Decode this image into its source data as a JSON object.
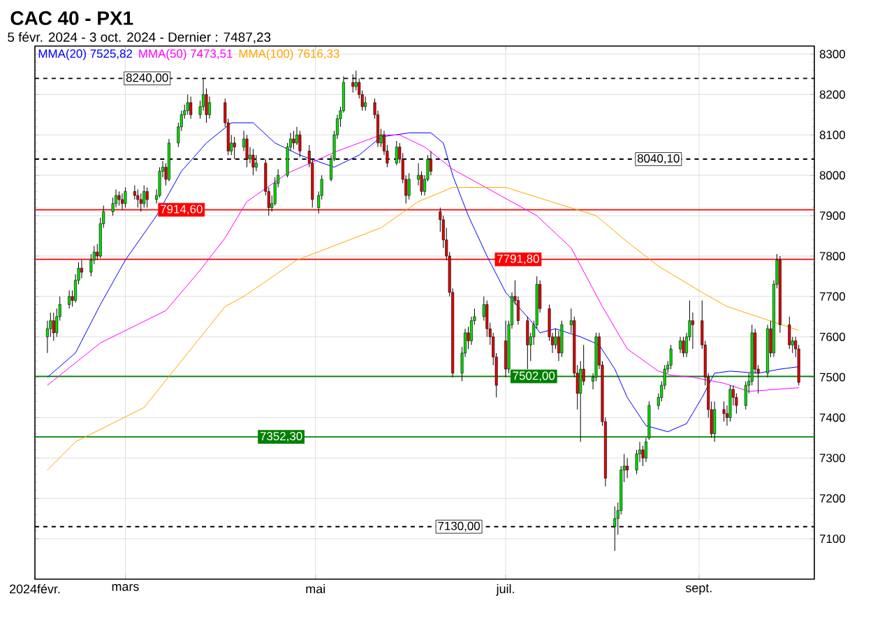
{
  "chart_data": {
    "type": "candlestick",
    "title": "CAC 40 - PX1",
    "subtitle": "5 févr. 2024 - 3 oct. 2024 - Dernier : 7487,23",
    "x": [
      "2024-02-05",
      "2024-02-06",
      "2024-02-07",
      "2024-02-08",
      "2024-02-09",
      "2024-02-12",
      "2024-02-13",
      "2024-02-14",
      "2024-02-15",
      "2024-02-16",
      "2024-02-19",
      "2024-02-20",
      "2024-02-21",
      "2024-02-22",
      "2024-02-23",
      "2024-02-26",
      "2024-02-27",
      "2024-02-28",
      "2024-02-29",
      "2024-03-01",
      "2024-03-04",
      "2024-03-05",
      "2024-03-06",
      "2024-03-07",
      "2024-03-08",
      "2024-03-11",
      "2024-03-12",
      "2024-03-13",
      "2024-03-14",
      "2024-03-15",
      "2024-03-18",
      "2024-03-19",
      "2024-03-20",
      "2024-03-21",
      "2024-03-22",
      "2024-03-25",
      "2024-03-26",
      "2024-03-27",
      "2024-03-28",
      "2024-04-02",
      "2024-04-03",
      "2024-04-04",
      "2024-04-05",
      "2024-04-08",
      "2024-04-09",
      "2024-04-10",
      "2024-04-11",
      "2024-04-12",
      "2024-04-15",
      "2024-04-16",
      "2024-04-17",
      "2024-04-18",
      "2024-04-19",
      "2024-04-22",
      "2024-04-23",
      "2024-04-24",
      "2024-04-25",
      "2024-04-26",
      "2024-04-29",
      "2024-04-30",
      "2024-05-02",
      "2024-05-03",
      "2024-05-06",
      "2024-05-07",
      "2024-05-08",
      "2024-05-09",
      "2024-05-10",
      "2024-05-13",
      "2024-05-14",
      "2024-05-15",
      "2024-05-16",
      "2024-05-17",
      "2024-05-20",
      "2024-05-21",
      "2024-05-22",
      "2024-05-23",
      "2024-05-24",
      "2024-05-27",
      "2024-05-28",
      "2024-05-29",
      "2024-05-30",
      "2024-05-31",
      "2024-06-03",
      "2024-06-04",
      "2024-06-05",
      "2024-06-06",
      "2024-06-07",
      "2024-06-10",
      "2024-06-11",
      "2024-06-12",
      "2024-06-13",
      "2024-06-14",
      "2024-06-17",
      "2024-06-18",
      "2024-06-19",
      "2024-06-20",
      "2024-06-21",
      "2024-06-24",
      "2024-06-25",
      "2024-06-26",
      "2024-06-27",
      "2024-06-28",
      "2024-07-01",
      "2024-07-02",
      "2024-07-03",
      "2024-07-04",
      "2024-07-05",
      "2024-07-08",
      "2024-07-09",
      "2024-07-10",
      "2024-07-11",
      "2024-07-12",
      "2024-07-15",
      "2024-07-16",
      "2024-07-17",
      "2024-07-18",
      "2024-07-19",
      "2024-07-22",
      "2024-07-23",
      "2024-07-24",
      "2024-07-25",
      "2024-07-26",
      "2024-07-29",
      "2024-07-30",
      "2024-07-31",
      "2024-08-01",
      "2024-08-02",
      "2024-08-05",
      "2024-08-06",
      "2024-08-07",
      "2024-08-08",
      "2024-08-09",
      "2024-08-12",
      "2024-08-13",
      "2024-08-14",
      "2024-08-15",
      "2024-08-16",
      "2024-08-19",
      "2024-08-20",
      "2024-08-21",
      "2024-08-22",
      "2024-08-23",
      "2024-08-26",
      "2024-08-27",
      "2024-08-28",
      "2024-08-29",
      "2024-08-30",
      "2024-09-02",
      "2024-09-03",
      "2024-09-04",
      "2024-09-05",
      "2024-09-06",
      "2024-09-09",
      "2024-09-10",
      "2024-09-11",
      "2024-09-12",
      "2024-09-13",
      "2024-09-16",
      "2024-09-17",
      "2024-09-18",
      "2024-09-19",
      "2024-09-20",
      "2024-09-23",
      "2024-09-24",
      "2024-09-25",
      "2024-09-26",
      "2024-09-27",
      "2024-09-30",
      "2024-10-01",
      "2024-10-02",
      "2024-10-03"
    ],
    "ohlc": [
      [
        7600,
        7640,
        7560,
        7620
      ],
      [
        7620,
        7660,
        7600,
        7640
      ],
      [
        7640,
        7660,
        7590,
        7610
      ],
      [
        7610,
        7670,
        7600,
        7650
      ],
      [
        7650,
        7700,
        7640,
        7680
      ],
      [
        7680,
        7715,
        7670,
        7700
      ],
      [
        7700,
        7715,
        7675,
        7690
      ],
      [
        7690,
        7755,
        7685,
        7740
      ],
      [
        7740,
        7785,
        7730,
        7770
      ],
      [
        7770,
        7790,
        7745,
        7760
      ],
      [
        7760,
        7805,
        7750,
        7790
      ],
      [
        7790,
        7825,
        7780,
        7810
      ],
      [
        7810,
        7830,
        7790,
        7800
      ],
      [
        7800,
        7895,
        7795,
        7880
      ],
      [
        7880,
        7925,
        7870,
        7910
      ],
      [
        7910,
        7945,
        7900,
        7930
      ],
      [
        7930,
        7965,
        7920,
        7950
      ],
      [
        7950,
        7960,
        7925,
        7940
      ],
      [
        7940,
        7955,
        7915,
        7930
      ],
      [
        7930,
        7970,
        7920,
        7960
      ],
      [
        7960,
        7975,
        7940,
        7950
      ],
      [
        7950,
        7965,
        7920,
        7940
      ],
      [
        7940,
        7955,
        7910,
        7930
      ],
      [
        7930,
        7975,
        7920,
        7960
      ],
      [
        7960,
        7970,
        7920,
        7940
      ],
      [
        7940,
        7965,
        7930,
        7950
      ],
      [
        7950,
        8020,
        7945,
        8010
      ],
      [
        8010,
        8035,
        7995,
        8020
      ],
      [
        8020,
        8030,
        7975,
        7990
      ],
      [
        7990,
        8090,
        7985,
        8080
      ],
      [
        8080,
        8130,
        8070,
        8120
      ],
      [
        8120,
        8160,
        8110,
        8150
      ],
      [
        8150,
        8175,
        8140,
        8160
      ],
      [
        8160,
        8200,
        8150,
        8180
      ],
      [
        8180,
        8195,
        8140,
        8150
      ],
      [
        8150,
        8185,
        8140,
        8170
      ],
      [
        8170,
        8240,
        8160,
        8200
      ],
      [
        8200,
        8215,
        8130,
        8150
      ],
      [
        8150,
        8195,
        8140,
        8180
      ],
      [
        8180,
        8190,
        8120,
        8130
      ],
      [
        8130,
        8140,
        8050,
        8060
      ],
      [
        8060,
        8100,
        8050,
        8080
      ],
      [
        8080,
        8095,
        8040,
        8070
      ],
      [
        8070,
        8110,
        8060,
        8090
      ],
      [
        8090,
        8100,
        8020,
        8040
      ],
      [
        8040,
        8070,
        8030,
        8050
      ],
      [
        8050,
        8065,
        8000,
        8020
      ],
      [
        8020,
        8050,
        8010,
        8030
      ],
      [
        8030,
        8040,
        7950,
        7960
      ],
      [
        7960,
        7970,
        7900,
        7920
      ],
      [
        7920,
        7950,
        7910,
        7930
      ],
      [
        7930,
        7995,
        7925,
        7980
      ],
      [
        7980,
        8015,
        7970,
        8000
      ],
      [
        8000,
        8080,
        7995,
        8070
      ],
      [
        8070,
        8105,
        8060,
        8090
      ],
      [
        8090,
        8110,
        8065,
        8080
      ],
      [
        8080,
        8120,
        8075,
        8100
      ],
      [
        8100,
        8110,
        8045,
        8060
      ],
      [
        8060,
        8075,
        8020,
        8030
      ],
      [
        8030,
        8040,
        7920,
        7940
      ],
      [
        7920,
        7960,
        7905,
        7950
      ],
      [
        7950,
        8000,
        7940,
        7990
      ],
      [
        7990,
        8050,
        7985,
        8040
      ],
      [
        8040,
        8110,
        8035,
        8100
      ],
      [
        8100,
        8150,
        8090,
        8140
      ],
      [
        8140,
        8170,
        8120,
        8160
      ],
      [
        8160,
        8245,
        8155,
        8230
      ],
      [
        8230,
        8250,
        8205,
        8220
      ],
      [
        8220,
        8259,
        8210,
        8230
      ],
      [
        8230,
        8240,
        8190,
        8200
      ],
      [
        8200,
        8210,
        8160,
        8170
      ],
      [
        8170,
        8195,
        8160,
        8180
      ],
      [
        8180,
        8190,
        8140,
        8150
      ],
      [
        8150,
        8160,
        8070,
        8080
      ],
      [
        8080,
        8115,
        8070,
        8100
      ],
      [
        8100,
        8110,
        8050,
        8060
      ],
      [
        8060,
        8075,
        8020,
        8030
      ],
      [
        8030,
        8085,
        8025,
        8070
      ],
      [
        8070,
        8080,
        8030,
        8040
      ],
      [
        8040,
        8055,
        7980,
        7990
      ],
      [
        7990,
        8000,
        7930,
        7950
      ],
      [
        7950,
        8005,
        7940,
        7990
      ],
      [
        7990,
        8030,
        7975,
        8000
      ],
      [
        8000,
        8010,
        7950,
        7960
      ],
      [
        7960,
        8000,
        7950,
        7990
      ],
      [
        7990,
        8050,
        7985,
        8040
      ],
      [
        8040,
        8060,
        8000,
        8010
      ],
      [
        7910,
        7920,
        7860,
        7890
      ],
      [
        7890,
        7900,
        7820,
        7840
      ],
      [
        7840,
        7870,
        7790,
        7800
      ],
      [
        7800,
        7810,
        7700,
        7710
      ],
      [
        7710,
        7720,
        7500,
        7510
      ],
      [
        7510,
        7575,
        7490,
        7560
      ],
      [
        7560,
        7620,
        7550,
        7610
      ],
      [
        7610,
        7625,
        7570,
        7590
      ],
      [
        7590,
        7650,
        7580,
        7640
      ],
      [
        7640,
        7670,
        7630,
        7650
      ],
      [
        7650,
        7700,
        7640,
        7680
      ],
      [
        7680,
        7690,
        7600,
        7620
      ],
      [
        7620,
        7635,
        7580,
        7600
      ],
      [
        7600,
        7610,
        7530,
        7550
      ],
      [
        7550,
        7560,
        7450,
        7480
      ],
      [
        7590,
        7640,
        7500,
        7520
      ],
      [
        7520,
        7640,
        7510,
        7630
      ],
      [
        7630,
        7710,
        7620,
        7700
      ],
      [
        7700,
        7740,
        7680,
        7690
      ],
      [
        7690,
        7700,
        7630,
        7640
      ],
      [
        7640,
        7650,
        7520,
        7580
      ],
      [
        7580,
        7610,
        7540,
        7600
      ],
      [
        7600,
        7640,
        7580,
        7630
      ],
      [
        7630,
        7750,
        7620,
        7730
      ],
      [
        7730,
        7740,
        7660,
        7670
      ],
      [
        7670,
        7680,
        7590,
        7600
      ],
      [
        7600,
        7610,
        7560,
        7580
      ],
      [
        7580,
        7620,
        7570,
        7600
      ],
      [
        7600,
        7615,
        7540,
        7560
      ],
      [
        7560,
        7640,
        7550,
        7630
      ],
      [
        7630,
        7670,
        7610,
        7640
      ],
      [
        7640,
        7650,
        7500,
        7510
      ],
      [
        7510,
        7530,
        7420,
        7460
      ],
      [
        7460,
        7540,
        7340,
        7520
      ],
      [
        7520,
        7580,
        7480,
        7490
      ],
      [
        7490,
        7510,
        7470,
        7500
      ],
      [
        7500,
        7610,
        7490,
        7600
      ],
      [
        7600,
        7610,
        7520,
        7530
      ],
      [
        7530,
        7540,
        7380,
        7390
      ],
      [
        7390,
        7400,
        7230,
        7250
      ],
      [
        7130,
        7180,
        7070,
        7150
      ],
      [
        7150,
        7190,
        7110,
        7170
      ],
      [
        7170,
        7280,
        7160,
        7270
      ],
      [
        7270,
        7310,
        7240,
        7280
      ],
      [
        7280,
        7300,
        7250,
        7270
      ],
      [
        7270,
        7320,
        7260,
        7310
      ],
      [
        7310,
        7340,
        7290,
        7320
      ],
      [
        7320,
        7330,
        7280,
        7300
      ],
      [
        7300,
        7350,
        7290,
        7340
      ],
      [
        7350,
        7440,
        7345,
        7430
      ],
      [
        7430,
        7460,
        7420,
        7450
      ],
      [
        7450,
        7490,
        7440,
        7480
      ],
      [
        7480,
        7530,
        7470,
        7520
      ],
      [
        7520,
        7540,
        7510,
        7530
      ],
      [
        7530,
        7580,
        7520,
        7570
      ],
      [
        7570,
        7600,
        7560,
        7590
      ],
      [
        7590,
        7600,
        7550,
        7560
      ],
      [
        7560,
        7610,
        7550,
        7600
      ],
      [
        7600,
        7690,
        7590,
        7640
      ],
      [
        7640,
        7660,
        7570,
        7630
      ],
      [
        7640,
        7690,
        7570,
        7580
      ],
      [
        7580,
        7590,
        7480,
        7500
      ],
      [
        7500,
        7510,
        7400,
        7420
      ],
      [
        7420,
        7440,
        7350,
        7360
      ],
      [
        7360,
        7440,
        7340,
        7420
      ],
      [
        7420,
        7440,
        7390,
        7410
      ],
      [
        7410,
        7430,
        7380,
        7400
      ],
      [
        7400,
        7480,
        7390,
        7470
      ],
      [
        7470,
        7480,
        7430,
        7450
      ],
      [
        7450,
        7460,
        7410,
        7430
      ],
      [
        7430,
        7490,
        7420,
        7480
      ],
      [
        7480,
        7510,
        7460,
        7490
      ],
      [
        7490,
        7630,
        7480,
        7610
      ],
      [
        7610,
        7620,
        7510,
        7520
      ],
      [
        7520,
        7530,
        7460,
        7510
      ],
      [
        7510,
        7630,
        7500,
        7620
      ],
      [
        7620,
        7640,
        7550,
        7560
      ],
      [
        7560,
        7740,
        7550,
        7730
      ],
      [
        7730,
        7805,
        7720,
        7790
      ],
      [
        7790,
        7800,
        7610,
        7630
      ],
      [
        7630,
        7650,
        7570,
        7580
      ],
      [
        7580,
        7600,
        7560,
        7590
      ],
      [
        7590,
        7600,
        7550,
        7570
      ],
      [
        7570,
        7580,
        7480,
        7487.23
      ]
    ],
    "series": [
      {
        "name": "MMA(20) 7525,82",
        "type": "line",
        "color": "#0000ff",
        "x": [
          "2024-02-05",
          "2024-02-14",
          "2024-02-22",
          "2024-03-01",
          "2024-03-11",
          "2024-03-19",
          "2024-03-27",
          "2024-04-04",
          "2024-04-11",
          "2024-04-18",
          "2024-04-26",
          "2024-05-07",
          "2024-05-15",
          "2024-05-22",
          "2024-05-31",
          "2024-06-07",
          "2024-06-11",
          "2024-06-14",
          "2024-06-19",
          "2024-06-25",
          "2024-07-01",
          "2024-07-09",
          "2024-07-12",
          "2024-07-17",
          "2024-07-25",
          "2024-07-31",
          "2024-08-05",
          "2024-08-09",
          "2024-08-15",
          "2024-08-22",
          "2024-08-28",
          "2024-09-02",
          "2024-09-06",
          "2024-09-11",
          "2024-09-20",
          "2024-09-27",
          "2024-10-03"
        ],
        "values": [
          7500,
          7560,
          7680,
          7790,
          7900,
          8010,
          8080,
          8130,
          8130,
          8080,
          8050,
          8020,
          8050,
          8095,
          8105,
          8105,
          8080,
          8000,
          7900,
          7800,
          7710,
          7640,
          7610,
          7620,
          7600,
          7580,
          7520,
          7450,
          7380,
          7365,
          7385,
          7450,
          7510,
          7515,
          7510,
          7520,
          7526
        ]
      },
      {
        "name": "MMA(50) 7473,51",
        "type": "line",
        "color": "#ff00ff",
        "x": [
          "2024-02-05",
          "2024-02-22",
          "2024-03-14",
          "2024-03-25",
          "2024-04-02",
          "2024-04-09",
          "2024-04-22",
          "2024-05-08",
          "2024-05-22",
          "2024-05-28",
          "2024-06-05",
          "2024-06-10",
          "2024-06-14",
          "2024-07-11",
          "2024-07-22",
          "2024-08-01",
          "2024-08-09",
          "2024-08-19",
          "2024-08-23",
          "2024-08-30",
          "2024-09-09",
          "2024-09-17",
          "2024-10-03"
        ],
        "values": [
          7480,
          7585,
          7665,
          7765,
          7845,
          7935,
          8005,
          8060,
          8100,
          8100,
          8070,
          8040,
          8015,
          7900,
          7820,
          7675,
          7570,
          7515,
          7505,
          7500,
          7485,
          7465,
          7474
        ]
      },
      {
        "name": "MMA(100) 7616,33",
        "type": "line",
        "color": "#ffa500",
        "x": [
          "2024-02-05",
          "2024-02-14",
          "2024-03-07",
          "2024-04-02",
          "2024-04-08",
          "2024-04-25",
          "2024-05-22",
          "2024-06-03",
          "2024-06-14",
          "2024-07-01",
          "2024-07-30",
          "2024-08-09",
          "2024-08-19",
          "2024-09-02",
          "2024-09-10",
          "2024-10-03"
        ],
        "values": [
          7270,
          7340,
          7425,
          7675,
          7700,
          7790,
          7870,
          7935,
          7970,
          7970,
          7900,
          7835,
          7775,
          7710,
          7675,
          7616
        ]
      }
    ],
    "ref_lines": [
      {
        "axis": "y",
        "value": 8240,
        "label": "8240,00",
        "color": "#000000",
        "line_style": "dashed"
      },
      {
        "axis": "y",
        "value": 8040.1,
        "label": "8040,10",
        "color": "#000000",
        "line_style": "dashed"
      },
      {
        "axis": "y",
        "value": 7914.6,
        "label": "7914,60",
        "color": "#ff0000",
        "line_style": "solid"
      },
      {
        "axis": "y",
        "value": 7791.8,
        "label": "7791,80",
        "color": "#ff0000",
        "line_style": "solid"
      },
      {
        "axis": "y",
        "value": 7502,
        "label": "7502,00",
        "color": "#008000",
        "line_style": "solid"
      },
      {
        "axis": "y",
        "value": 7352.3,
        "label": "7352,30",
        "color": "#008000",
        "line_style": "solid"
      },
      {
        "axis": "y",
        "value": 7130,
        "label": "7130,00",
        "color": "#000000",
        "line_style": "dashed"
      }
    ],
    "xlim": [
      "2024-02-01",
      "2024-10-08"
    ],
    "xticks": [
      {
        "value": "2024-02-01",
        "label": "2024févr."
      },
      {
        "value": "2024-03-01",
        "label": "mars"
      },
      {
        "value": "2024-05-01",
        "label": "mai"
      },
      {
        "value": "2024-07-01",
        "label": "juil."
      },
      {
        "value": "2024-09-01",
        "label": "sept."
      }
    ],
    "ylim": [
      7000,
      8320
    ],
    "yticks": [
      7100,
      7200,
      7300,
      7400,
      7500,
      7600,
      7700,
      7800,
      7900,
      8000,
      8100,
      8200,
      8300
    ],
    "grid": true
  }
}
